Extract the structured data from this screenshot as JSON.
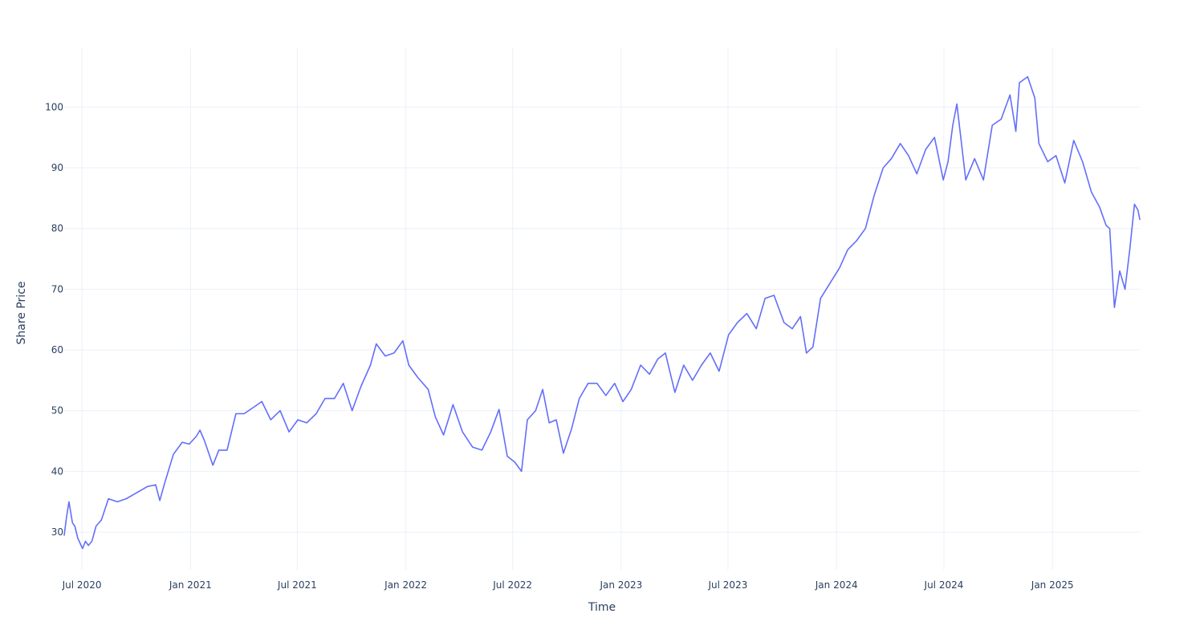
{
  "chart_data": {
    "type": "line",
    "title": "",
    "xlabel": "Time",
    "ylabel": "Share Price",
    "grid": true,
    "legend": "none",
    "line_color": "#636efa",
    "xlim": [
      "2020-06-01",
      "2025-05-29"
    ],
    "ylim": [
      23.8,
      109.7
    ],
    "x_ticks": [
      {
        "date": "2020-07-01",
        "label": "Jul 2020"
      },
      {
        "date": "2021-01-01",
        "label": "Jan 2021"
      },
      {
        "date": "2021-07-01",
        "label": "Jul 2021"
      },
      {
        "date": "2022-01-01",
        "label": "Jan 2022"
      },
      {
        "date": "2022-07-01",
        "label": "Jul 2022"
      },
      {
        "date": "2023-01-01",
        "label": "Jan 2023"
      },
      {
        "date": "2023-07-01",
        "label": "Jul 2023"
      },
      {
        "date": "2024-01-01",
        "label": "Jan 2024"
      },
      {
        "date": "2024-07-01",
        "label": "Jul 2024"
      },
      {
        "date": "2025-01-01",
        "label": "Jan 2025"
      }
    ],
    "y_ticks": [
      30,
      40,
      50,
      60,
      70,
      80,
      90,
      100
    ],
    "series": [
      {
        "x": [
          "2020-06-01",
          "2020-06-05",
          "2020-06-09",
          "2020-06-15",
          "2020-06-19",
          "2020-06-24",
          "2020-07-02",
          "2020-07-07",
          "2020-07-12",
          "2020-07-18",
          "2020-07-25",
          "2020-08-03",
          "2020-08-15",
          "2020-08-30",
          "2020-09-14",
          "2020-10-02",
          "2020-10-20",
          "2020-11-03",
          "2020-11-10",
          "2020-11-18",
          "2020-12-03",
          "2020-12-18",
          "2020-12-30",
          "2021-01-11",
          "2021-01-17",
          "2021-01-25",
          "2021-02-08",
          "2021-02-18",
          "2021-03-04",
          "2021-03-19",
          "2021-04-02",
          "2021-04-17",
          "2021-05-02",
          "2021-05-17",
          "2021-06-02",
          "2021-06-17",
          "2021-07-02",
          "2021-07-17",
          "2021-08-02",
          "2021-08-17",
          "2021-09-02",
          "2021-09-17",
          "2021-10-02",
          "2021-10-17",
          "2021-11-02",
          "2021-11-12",
          "2021-11-27",
          "2021-12-12",
          "2021-12-27",
          "2022-01-06",
          "2022-01-21",
          "2022-02-08",
          "2022-02-20",
          "2022-03-06",
          "2022-03-22",
          "2022-04-07",
          "2022-04-24",
          "2022-05-10",
          "2022-05-25",
          "2022-06-08",
          "2022-06-22",
          "2022-07-05",
          "2022-07-16",
          "2022-07-26",
          "2022-08-09",
          "2022-08-21",
          "2022-09-01",
          "2022-09-13",
          "2022-09-25",
          "2022-10-09",
          "2022-10-22",
          "2022-11-06",
          "2022-11-21",
          "2022-12-06",
          "2022-12-21",
          "2023-01-04",
          "2023-01-18",
          "2023-02-03",
          "2023-02-18",
          "2023-03-04",
          "2023-03-17",
          "2023-04-02",
          "2023-04-17",
          "2023-05-02",
          "2023-05-17",
          "2023-06-01",
          "2023-06-16",
          "2023-07-02",
          "2023-07-17",
          "2023-08-02",
          "2023-08-18",
          "2023-09-02",
          "2023-09-17",
          "2023-10-04",
          "2023-10-18",
          "2023-11-01",
          "2023-11-11",
          "2023-11-22",
          "2023-12-05",
          "2023-12-21",
          "2024-01-06",
          "2024-01-20",
          "2024-02-04",
          "2024-02-19",
          "2024-03-05",
          "2024-03-20",
          "2024-04-03",
          "2024-04-18",
          "2024-05-02",
          "2024-05-16",
          "2024-05-31",
          "2024-06-15",
          "2024-06-30",
          "2024-07-08",
          "2024-07-16",
          "2024-07-23",
          "2024-08-07",
          "2024-08-22",
          "2024-09-06",
          "2024-09-21",
          "2024-10-06",
          "2024-10-21",
          "2024-10-31",
          "2024-11-06",
          "2024-11-20",
          "2024-12-02",
          "2024-12-09",
          "2024-12-24",
          "2025-01-07",
          "2025-01-22",
          "2025-02-06",
          "2025-02-21",
          "2025-03-08",
          "2025-03-22",
          "2025-04-02",
          "2025-04-08",
          "2025-04-16",
          "2025-04-25",
          "2025-05-04",
          "2025-05-12",
          "2025-05-20",
          "2025-05-26",
          "2025-05-29"
        ],
        "y": [
          29.5,
          32.5,
          35,
          31.5,
          31,
          29,
          27.3,
          28.5,
          27.8,
          28.5,
          31,
          32,
          35.5,
          35,
          35.5,
          36.5,
          37.5,
          37.8,
          35.2,
          38,
          42.8,
          44.8,
          44.5,
          45.8,
          46.8,
          45,
          41,
          43.5,
          43.5,
          49.5,
          49.5,
          50.5,
          51.5,
          48.5,
          50,
          46.5,
          48.5,
          48,
          49.5,
          52,
          52,
          54.5,
          50,
          54,
          57.5,
          61,
          59,
          59.5,
          61.5,
          57.5,
          55.5,
          53.5,
          49,
          46,
          51,
          46.5,
          44,
          43.5,
          46.5,
          50.2,
          42.5,
          41.5,
          40,
          48.5,
          50,
          53.5,
          48,
          48.5,
          43,
          47,
          52,
          54.5,
          54.5,
          52.5,
          54.5,
          51.5,
          53.5,
          57.5,
          56,
          58.5,
          59.5,
          53,
          57.5,
          55,
          57.5,
          59.5,
          56.5,
          62.5,
          64.5,
          66,
          63.5,
          68.5,
          69,
          64.5,
          63.5,
          65.5,
          59.5,
          60.5,
          68.5,
          71,
          73.5,
          76.5,
          78,
          80,
          85.5,
          90,
          91.5,
          94,
          92,
          89,
          93,
          95,
          88,
          91,
          97,
          100.5,
          88,
          91.5,
          88,
          97,
          98,
          102,
          96,
          104,
          105,
          101.5,
          94,
          91,
          92,
          87.5,
          94.5,
          91,
          86,
          83.5,
          80.5,
          80,
          67,
          73,
          70,
          76.5,
          84,
          83,
          81.5
        ]
      }
    ]
  }
}
